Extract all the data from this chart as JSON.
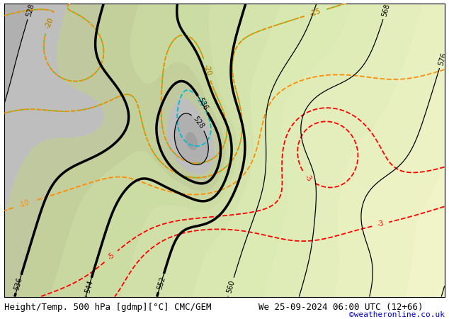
{
  "title_left": "Height/Temp. 500 hPa [gdmp][°C] CMC/GEM",
  "title_right": "We 25-09-2024 06:00 UTC (12+66)",
  "credit": "©weatheronline.co.uk",
  "background_color": "#ffffff",
  "height_contour_color": "#000000",
  "temp_red_color": "#ff0000",
  "temp_orange_color": "#ff8c00",
  "temp_green_color": "#32cd32",
  "temp_cyan_color": "#00bcd4",
  "font_size_title": 9,
  "font_size_credit": 8,
  "font_size_labels": 7
}
